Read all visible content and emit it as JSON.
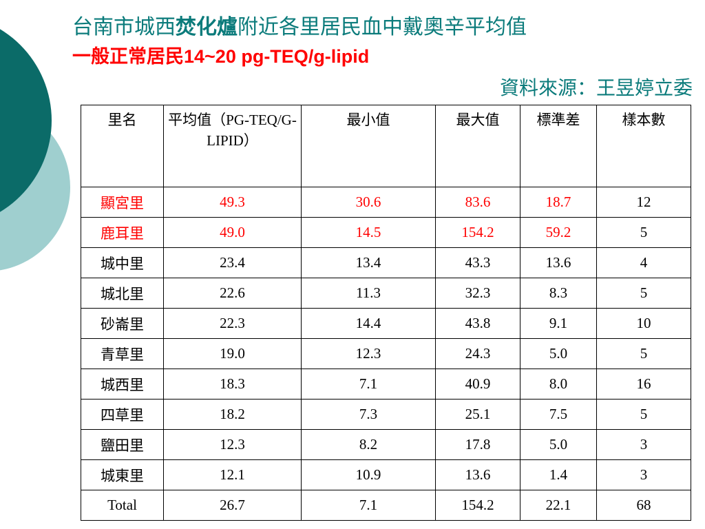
{
  "title": {
    "parts": [
      "台南市城西",
      "焚化爐",
      "附近各里居民血中戴奧辛平均值"
    ]
  },
  "subtitle": "一般正常居民14~20 pg-TEQ/g-lipid",
  "source": "資料來源：王昱婷立委",
  "table": {
    "header": [
      "里名",
      "平均值（PG-TEQ/G-LIPID）",
      "最小值",
      "最大值",
      "標準差",
      "樣本數"
    ],
    "rows": [
      [
        "顯宮里",
        "49.3",
        "30.6",
        "83.6",
        "18.7",
        "12"
      ],
      [
        "鹿耳里",
        "49.0",
        "14.5",
        "154.2",
        "59.2",
        "5"
      ],
      [
        "城中里",
        "23.4",
        "13.4",
        "43.3",
        "13.6",
        "4"
      ],
      [
        "城北里",
        "22.6",
        "11.3",
        "32.3",
        "8.3",
        "5"
      ],
      [
        "砂崙里",
        "22.3",
        "14.4",
        "43.8",
        "9.1",
        "10"
      ],
      [
        "青草里",
        "19.0",
        "12.3",
        "24.3",
        "5.0",
        "5"
      ],
      [
        "城西里",
        "18.3",
        "7.1",
        "40.9",
        "8.0",
        "16"
      ],
      [
        "四草里",
        "18.2",
        "7.3",
        "25.1",
        "7.5",
        "5"
      ],
      [
        "鹽田里",
        "12.3",
        "8.2",
        "17.8",
        "5.0",
        "3"
      ],
      [
        "城東里",
        "12.1",
        "10.9",
        "13.6",
        "1.4",
        "3"
      ],
      [
        "Total",
        "26.7",
        "7.1",
        "154.2",
        "22.1",
        "68"
      ]
    ]
  }
}
